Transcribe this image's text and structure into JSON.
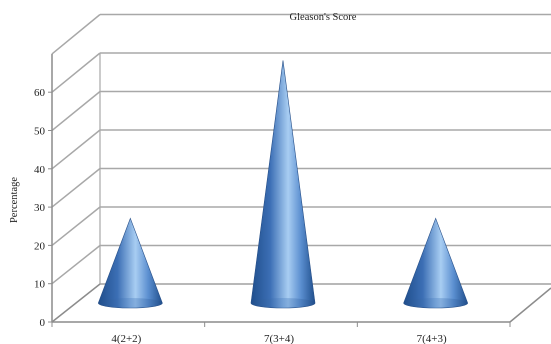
{
  "chart_data": {
    "type": "bar",
    "style": "3d-cone",
    "title": "Gleason's Score",
    "xlabel": "",
    "ylabel": "Percentage",
    "categories": [
      "4(2+2)",
      "7(3+4)",
      "7(4+3)"
    ],
    "values": [
      22,
      63,
      22
    ],
    "ylim": [
      0,
      60
    ],
    "yticks": [
      0,
      10,
      20,
      30,
      40,
      50,
      60
    ],
    "grid": true,
    "legend": "none",
    "colors": {
      "cone_dark": "#1f4e8c",
      "cone_mid": "#4f86c9",
      "cone_light": "#a8cdf2",
      "grid": "#a0a0a0",
      "axis": "#8c8c8c"
    }
  }
}
